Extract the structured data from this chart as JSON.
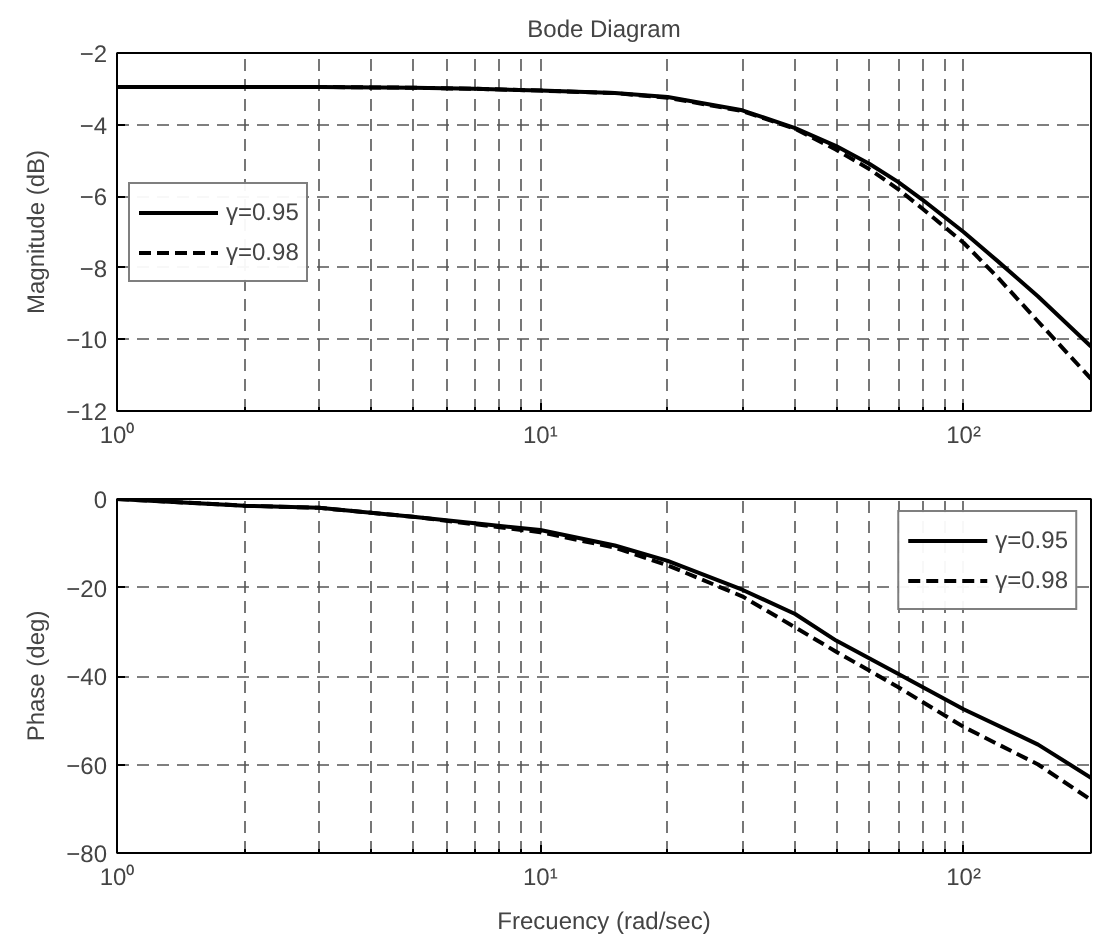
{
  "chart_data": [
    {
      "type": "line",
      "title": "Bode Diagram",
      "ylabel": "Magnitude (dB)",
      "log": "x",
      "x": [
        1,
        2,
        3,
        5,
        7,
        10,
        15,
        20,
        30,
        40,
        50,
        60,
        70,
        80,
        100,
        120,
        150,
        200
      ],
      "xlim": [
        1,
        200
      ],
      "ylim": [
        -12,
        -2
      ],
      "xticks": [
        {
          "value": 1,
          "label": "10⁰"
        },
        {
          "value": 10,
          "label": "10¹"
        },
        {
          "value": 100,
          "label": "10²"
        }
      ],
      "yticks": [
        -12,
        -10,
        -8,
        -6,
        -4,
        -2
      ],
      "grid": true,
      "legend": "left",
      "series": [
        {
          "name": "γ=0.95",
          "color": "#000000",
          "line_style": "solid",
          "values": [
            -2.95,
            -2.95,
            -2.95,
            -2.97,
            -3.0,
            -3.05,
            -3.12,
            -3.23,
            -3.6,
            -4.1,
            -4.6,
            -5.1,
            -5.6,
            -6.1,
            -7.0,
            -7.8,
            -8.8,
            -10.2
          ]
        },
        {
          "name": "γ=0.98",
          "color": "#000000",
          "line_style": "dashed",
          "values": [
            -2.95,
            -2.95,
            -2.95,
            -2.97,
            -3.0,
            -3.05,
            -3.12,
            -3.25,
            -3.62,
            -4.12,
            -4.7,
            -5.25,
            -5.8,
            -6.35,
            -7.3,
            -8.25,
            -9.5,
            -11.1
          ]
        }
      ]
    },
    {
      "type": "line",
      "xlabel": "Frecuency (rad/sec)",
      "ylabel": "Phase (deg)",
      "log": "x",
      "x": [
        1,
        2,
        3,
        5,
        7,
        10,
        15,
        20,
        30,
        40,
        50,
        70,
        100,
        150,
        200
      ],
      "xlim": [
        1,
        200
      ],
      "ylim": [
        -80,
        0
      ],
      "xticks": [
        {
          "value": 1,
          "label": "10⁰"
        },
        {
          "value": 10,
          "label": "10¹"
        },
        {
          "value": 100,
          "label": "10²"
        }
      ],
      "yticks": [
        -80,
        -60,
        -40,
        -20,
        0
      ],
      "grid": true,
      "legend": "top right",
      "series": [
        {
          "name": "γ=0.95",
          "color": "#000000",
          "line_style": "solid",
          "values": [
            0,
            -1.5,
            -2,
            -4,
            -5.5,
            -7,
            -10.5,
            -14,
            -20.5,
            -26,
            -32,
            -39.5,
            -47.5,
            -55.5,
            -63
          ]
        },
        {
          "name": "γ=0.98",
          "color": "#000000",
          "line_style": "dashed",
          "values": [
            0,
            -1.5,
            -2,
            -4,
            -5.7,
            -7.5,
            -11,
            -15,
            -22,
            -29,
            -34.5,
            -42.5,
            -51.5,
            -60,
            -68
          ]
        }
      ]
    }
  ]
}
